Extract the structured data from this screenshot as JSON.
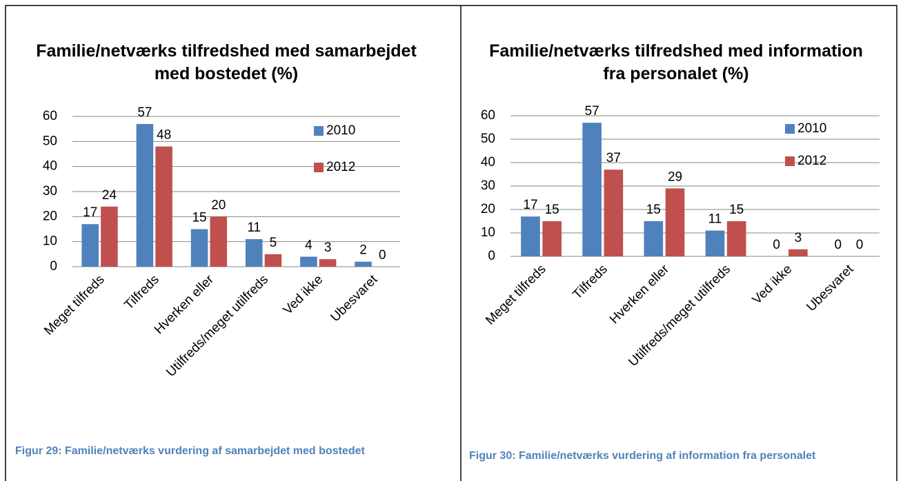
{
  "chart_data": [
    {
      "type": "bar",
      "title": "Familie/netværks tilfredshed med samarbejdet med bostedet (%)",
      "categories": [
        "Meget tilfreds",
        "Tilfreds",
        "Hverken eller",
        "Utilfreds/meget utilfreds",
        "Ved ikke",
        "Ubesvaret"
      ],
      "series": [
        {
          "name": "2010",
          "color": "#4f81bd",
          "values": [
            17,
            57,
            15,
            11,
            4,
            2
          ]
        },
        {
          "name": "2012",
          "color": "#c0504d",
          "values": [
            24,
            48,
            20,
            5,
            3,
            0
          ]
        }
      ],
      "ylim": [
        0,
        60
      ],
      "yticks": [
        0,
        10,
        20,
        30,
        40,
        50,
        60
      ],
      "grid": true,
      "legend": "upper right",
      "caption": "Figur 29: Familie/netværks vurdering af samarbejdet med bostedet"
    },
    {
      "type": "bar",
      "title": "Familie/netværks tilfredshed med information fra personalet (%)",
      "categories": [
        "Meget tilfreds",
        "Tilfreds",
        "Hverken eller",
        "Utilfreds/meget utilfreds",
        "Ved ikke",
        "Ubesvaret"
      ],
      "series": [
        {
          "name": "2010",
          "color": "#4f81bd",
          "values": [
            17,
            57,
            15,
            11,
            0,
            0
          ]
        },
        {
          "name": "2012",
          "color": "#c0504d",
          "values": [
            15,
            37,
            29,
            15,
            3,
            0
          ]
        }
      ],
      "ylim": [
        0,
        60
      ],
      "yticks": [
        0,
        10,
        20,
        30,
        40,
        50,
        60
      ],
      "grid": true,
      "legend": "upper right",
      "caption": "Figur 30: Familie/netværks vurdering af information fra personalet"
    }
  ]
}
